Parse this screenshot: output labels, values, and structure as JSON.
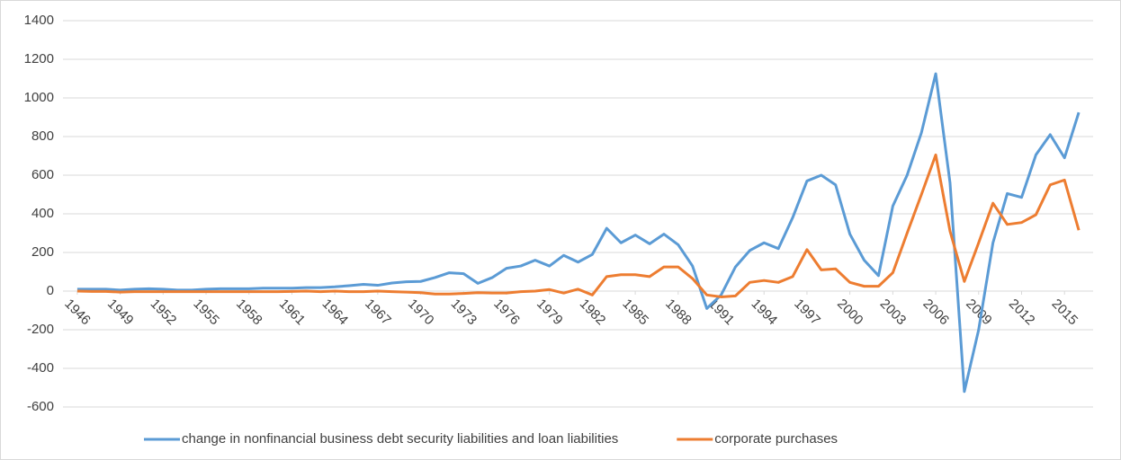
{
  "chart_data": {
    "type": "line",
    "x": [
      1946,
      1947,
      1948,
      1949,
      1950,
      1951,
      1952,
      1953,
      1954,
      1955,
      1956,
      1957,
      1958,
      1959,
      1960,
      1961,
      1962,
      1963,
      1964,
      1965,
      1966,
      1967,
      1968,
      1969,
      1970,
      1971,
      1972,
      1973,
      1974,
      1975,
      1976,
      1977,
      1978,
      1979,
      1980,
      1981,
      1982,
      1983,
      1984,
      1985,
      1986,
      1987,
      1988,
      1989,
      1990,
      1991,
      1992,
      1993,
      1994,
      1995,
      1996,
      1997,
      1998,
      1999,
      2000,
      2001,
      2002,
      2003,
      2004,
      2005,
      2006,
      2007,
      2008,
      2009,
      2010,
      2011,
      2012,
      2013,
      2014,
      2015,
      2016
    ],
    "series": [
      {
        "name": "change in nonfinancial business debt security liabilities and loan liabilities",
        "color": "#5b9bd5",
        "values": [
          10,
          10,
          10,
          5,
          10,
          12,
          10,
          5,
          5,
          10,
          12,
          12,
          12,
          15,
          15,
          15,
          18,
          18,
          22,
          28,
          35,
          30,
          42,
          48,
          50,
          70,
          95,
          90,
          40,
          70,
          118,
          130,
          160,
          130,
          185,
          150,
          190,
          325,
          250,
          290,
          245,
          295,
          240,
          130,
          -90,
          -20,
          125,
          210,
          250,
          220,
          380,
          570,
          600,
          550,
          295,
          160,
          80,
          440,
          600,
          820,
          1125,
          560,
          -520,
          -200,
          250,
          505,
          485,
          705,
          810,
          690,
          925
        ]
      },
      {
        "name": "corporate purchases",
        "color": "#ed7d31",
        "values": [
          0,
          -2,
          -2,
          -5,
          -3,
          -3,
          -3,
          -3,
          -3,
          -3,
          -3,
          -3,
          -3,
          -3,
          -3,
          -2,
          0,
          -3,
          0,
          -3,
          -3,
          0,
          -3,
          -5,
          -8,
          -15,
          -15,
          -12,
          -8,
          -10,
          -10,
          -3,
          0,
          8,
          -10,
          10,
          -20,
          75,
          85,
          85,
          75,
          125,
          125,
          65,
          -20,
          -30,
          -25,
          45,
          55,
          45,
          75,
          215,
          110,
          115,
          45,
          25,
          25,
          95,
          300,
          500,
          705,
          310,
          50,
          250,
          455,
          345,
          355,
          395,
          550,
          575,
          315
        ]
      }
    ],
    "xlim": [
      1945,
      2017
    ],
    "xticks": [
      1946,
      1949,
      1952,
      1955,
      1958,
      1961,
      1964,
      1967,
      1970,
      1973,
      1976,
      1979,
      1982,
      1985,
      1988,
      1991,
      1994,
      1997,
      2000,
      2003,
      2006,
      2009,
      2012,
      2015
    ],
    "ylim": [
      -600,
      1400
    ],
    "yticks": [
      -600,
      -400,
      -200,
      0,
      200,
      400,
      600,
      800,
      1000,
      1200,
      1400
    ],
    "grid": true
  }
}
